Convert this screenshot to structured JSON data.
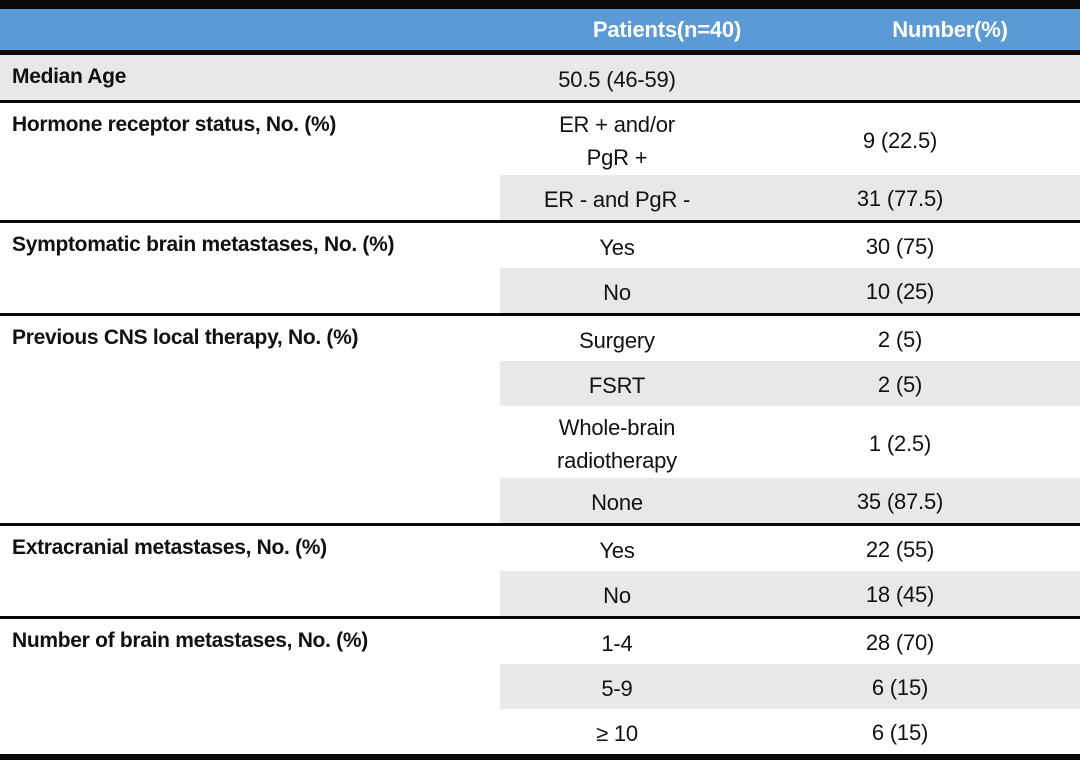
{
  "table": {
    "columns": [
      "",
      "Patients(n=40)",
      "Number(%)"
    ],
    "colors": {
      "header_bg": "#5B9BD5",
      "header_text": "#FFFFFF",
      "band_shade": "#E9E8E8",
      "rule": "#0A0A0A"
    },
    "groups": [
      {
        "label": "Median Age",
        "rows": [
          {
            "value": "50.5 (46-59)",
            "number": "",
            "shaded": true
          }
        ]
      },
      {
        "label": "Hormone receptor status, No. (%)",
        "rows": [
          {
            "value": "ER + and/or\nPgR +",
            "number": "9 (22.5)",
            "shaded": false
          },
          {
            "value": "ER - and PgR -",
            "number": "31 (77.5)",
            "shaded": true
          }
        ]
      },
      {
        "label": "Symptomatic brain metastases, No. (%)",
        "rows": [
          {
            "value": "Yes",
            "number": "30 (75)",
            "shaded": false
          },
          {
            "value": "No",
            "number": "10 (25)",
            "shaded": true
          }
        ]
      },
      {
        "label": "Previous CNS local therapy, No. (%)",
        "rows": [
          {
            "value": "Surgery",
            "number": "2 (5)",
            "shaded": false
          },
          {
            "value": "FSRT",
            "number": "2 (5)",
            "shaded": true
          },
          {
            "value": "Whole-brain\nradiotherapy",
            "number": "1 (2.5)",
            "shaded": false
          },
          {
            "value": "None",
            "number": "35 (87.5)",
            "shaded": true
          }
        ]
      },
      {
        "label": "Extracranial metastases, No. (%)",
        "rows": [
          {
            "value": "Yes",
            "number": "22 (55)",
            "shaded": false
          },
          {
            "value": "No",
            "number": "18 (45)",
            "shaded": true
          }
        ]
      },
      {
        "label": "Number of brain metastases, No. (%)",
        "rows": [
          {
            "value": "1-4",
            "number": "28 (70)",
            "shaded": false
          },
          {
            "value": "5-9",
            "number": "6 (15)",
            "shaded": true
          },
          {
            "value": "≥ 10",
            "number": "6 (15)",
            "shaded": false
          }
        ]
      }
    ]
  }
}
